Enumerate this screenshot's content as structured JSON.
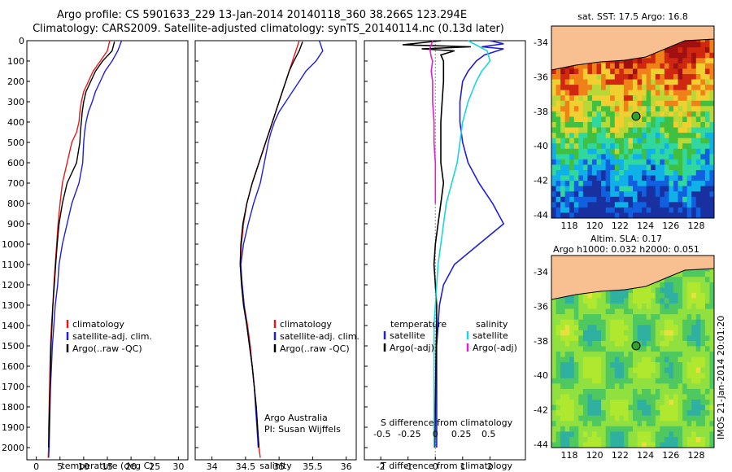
{
  "header": {
    "line1": "Argo profile: CS 5901633_229 13-Jan-2014 20140118_360 38.266S 123.294E",
    "line2": "Climatology: CARS2009. Satellite-adjusted climatology: synTS_20140114.nc (0.13d later)"
  },
  "colors": {
    "climatology": "#e41a1c",
    "satellite": "#1f1fd6",
    "argo": "#000000",
    "sat_s": "#19d6df",
    "argo_s": "#e020d0",
    "land": "#f8c090"
  },
  "chart_data": [
    {
      "type": "line",
      "name": "temperature",
      "xlabel": "temperature (deg C)",
      "ylabel": "",
      "xlim": [
        -2,
        32
      ],
      "ylim": [
        2060,
        0
      ],
      "xticks": [
        0,
        5,
        10,
        15,
        20,
        25,
        30
      ],
      "yticks": [
        0,
        100,
        200,
        300,
        400,
        500,
        600,
        700,
        800,
        900,
        1000,
        1100,
        1200,
        1300,
        1400,
        1500,
        1600,
        1700,
        1800,
        1900,
        2000
      ],
      "legend": [
        "climatology",
        "satellite-adj. clim.",
        "Argo(..raw -QC)"
      ],
      "series": [
        {
          "name": "climatology",
          "color": "#e41a1c",
          "x": [
            15.5,
            15.0,
            13.5,
            12.0,
            11.0,
            10.0,
            9.5,
            9.2,
            9.0,
            8.5,
            7.5,
            6.5,
            5.5,
            5.0,
            4.6,
            4.3,
            4.0,
            3.7,
            3.5,
            3.2,
            3.0,
            2.9,
            2.8,
            2.7,
            2.6,
            2.6,
            2.5
          ],
          "y": [
            0,
            50,
            100,
            150,
            200,
            250,
            300,
            350,
            400,
            450,
            500,
            600,
            700,
            800,
            900,
            1000,
            1100,
            1200,
            1300,
            1400,
            1500,
            1600,
            1700,
            1800,
            1900,
            2000,
            2050
          ]
        },
        {
          "name": "satellite-adj. clim.",
          "color": "#1f1fd6",
          "x": [
            18.0,
            17.2,
            16.0,
            14.5,
            13.5,
            12.5,
            11.8,
            11.0,
            10.5,
            10.2,
            10.0,
            9.8,
            9.0,
            7.5,
            6.5,
            5.5,
            4.8,
            4.5,
            4.0,
            3.7,
            3.4,
            3.2,
            3.0,
            2.9,
            2.8,
            2.7,
            2.6
          ],
          "y": [
            0,
            50,
            100,
            150,
            200,
            250,
            300,
            350,
            400,
            450,
            500,
            600,
            700,
            800,
            900,
            1000,
            1100,
            1200,
            1300,
            1400,
            1500,
            1600,
            1700,
            1800,
            1900,
            2000,
            2050
          ]
        },
        {
          "name": "Argo(..raw -QC)",
          "color": "#000000",
          "x": [
            16.5,
            16.0,
            14.0,
            12.5,
            11.5,
            10.5,
            10.0,
            9.7,
            9.5,
            9.3,
            9.2,
            8.5,
            6.5,
            5.5,
            4.8,
            4.4,
            4.1,
            3.8,
            3.5,
            3.3,
            3.1,
            3.0,
            2.9,
            2.8,
            2.7,
            2.6
          ],
          "y": [
            5,
            50,
            100,
            150,
            200,
            250,
            300,
            350,
            400,
            450,
            500,
            600,
            700,
            800,
            900,
            1000,
            1100,
            1200,
            1300,
            1400,
            1500,
            1600,
            1700,
            1800,
            1900,
            2000
          ]
        }
      ]
    },
    {
      "type": "line",
      "name": "salinity",
      "xlabel": "salinity",
      "ylabel": "",
      "xlim": [
        33.75,
        36.15
      ],
      "ylim": [
        2060,
        0
      ],
      "xticks": [
        34,
        34.5,
        35,
        35.5,
        36
      ],
      "legend": [
        "climatology",
        "satellite-adj. clim.",
        "Argo(..raw -QC)"
      ],
      "annotation": [
        "Argo Australia",
        "PI: Susan Wijffels"
      ],
      "series": [
        {
          "name": "climatology",
          "color": "#e41a1c",
          "x": [
            35.3,
            35.25,
            35.2,
            35.15,
            35.1,
            35.05,
            35.0,
            34.95,
            34.9,
            34.85,
            34.8,
            34.7,
            34.6,
            34.52,
            34.47,
            34.44,
            34.42,
            34.45,
            34.48,
            34.53,
            34.57,
            34.6,
            34.63,
            34.66,
            34.68,
            34.7,
            34.72
          ],
          "y": [
            0,
            50,
            100,
            150,
            200,
            250,
            300,
            350,
            400,
            450,
            500,
            600,
            700,
            800,
            900,
            1000,
            1100,
            1200,
            1300,
            1400,
            1500,
            1600,
            1700,
            1800,
            1900,
            2000,
            2050
          ]
        },
        {
          "name": "satellite-adj. clim.",
          "color": "#1f1fd6",
          "x": [
            35.6,
            35.65,
            35.55,
            35.4,
            35.3,
            35.2,
            35.1,
            35.0,
            34.93,
            34.88,
            34.84,
            34.78,
            34.72,
            34.62,
            34.54,
            34.47,
            34.43,
            34.45,
            34.48,
            34.52,
            34.56,
            34.6,
            34.63,
            34.65,
            34.67,
            34.69
          ],
          "y": [
            0,
            50,
            100,
            150,
            200,
            250,
            300,
            350,
            400,
            450,
            500,
            600,
            700,
            800,
            900,
            1000,
            1100,
            1200,
            1300,
            1400,
            1500,
            1600,
            1700,
            1800,
            1900,
            2000
          ]
        },
        {
          "name": "Argo(..raw -QC)",
          "color": "#000000",
          "x": [
            35.35,
            35.3,
            35.22,
            35.15,
            35.1,
            35.05,
            35.0,
            34.95,
            34.9,
            34.85,
            34.8,
            34.7,
            34.6,
            34.52,
            34.46,
            34.43,
            34.42,
            34.44,
            34.47,
            34.52,
            34.56,
            34.6,
            34.63,
            34.66,
            34.68,
            34.7
          ],
          "y": [
            5,
            50,
            100,
            150,
            200,
            250,
            300,
            350,
            400,
            450,
            500,
            600,
            700,
            800,
            900,
            1000,
            1100,
            1200,
            1300,
            1400,
            1500,
            1600,
            1700,
            1800,
            1900,
            2000
          ]
        }
      ]
    },
    {
      "type": "line",
      "name": "differences",
      "xlabel": "T difference from climatology",
      "x2label": "S difference from climatology",
      "xlim": [
        -2.6,
        3.3
      ],
      "ylim": [
        2060,
        0
      ],
      "xticks": [
        -2,
        -1,
        0,
        1,
        2
      ],
      "x2ticks": [
        "-0.5",
        "-0.25",
        "0",
        "0.25",
        "0.5"
      ],
      "legend_left": [
        "temperature",
        "satellite",
        "Argo(-adj)"
      ],
      "legend_right": [
        "salinity",
        "satellite",
        "Argo(-adj)"
      ],
      "series": [
        {
          "name": "T satellite",
          "color": "#1f1fd6",
          "x": [
            2.0,
            2.5,
            1.7,
            2.5,
            1.8,
            1.5,
            1.2,
            1.0,
            0.9,
            0.9,
            1.0,
            1.2,
            1.6,
            2.1,
            2.5,
            1.6,
            0.7,
            0.3,
            0.15,
            0.1,
            0.05,
            0.05,
            0.05,
            0.05
          ],
          "y": [
            0,
            15,
            30,
            40,
            70,
            100,
            150,
            200,
            300,
            400,
            500,
            600,
            700,
            800,
            900,
            1000,
            1100,
            1200,
            1300,
            1400,
            1500,
            1600,
            1800,
            2000
          ]
        },
        {
          "name": "T Argo(-adj)",
          "color": "#000000",
          "x": [
            0.2,
            -1.2,
            1.3,
            -0.5,
            0.7,
            0.2,
            0.3,
            0.3,
            0.25,
            0.2,
            0.2,
            0.2,
            0.3,
            0.2,
            0.1,
            0.0,
            -0.05,
            0.0,
            0.05,
            0.05,
            0.03,
            0.02,
            0.0,
            -0.02
          ],
          "y": [
            0,
            20,
            30,
            40,
            50,
            70,
            100,
            200,
            300,
            400,
            500,
            600,
            700,
            800,
            900,
            1000,
            1100,
            1200,
            1300,
            1400,
            1500,
            1600,
            1800,
            2000
          ]
        },
        {
          "name": "S satellite",
          "color": "#19d6df",
          "x": [
            1.2,
            1.9,
            2.0,
            1.7,
            1.5,
            1.2,
            1.0,
            0.9,
            0.8,
            0.6,
            0.4,
            0.3,
            0.2,
            0.1,
            0.05,
            0.0,
            -0.05,
            -0.05,
            -0.05,
            -0.05,
            -0.05,
            -0.05
          ],
          "y": [
            0,
            50,
            100,
            150,
            200,
            300,
            400,
            500,
            600,
            700,
            800,
            900,
            1000,
            1100,
            1200,
            1300,
            1400,
            1500,
            1600,
            1700,
            1800,
            2000
          ]
        },
        {
          "name": "S Argo(-adj)",
          "color": "#e020d0",
          "x": [
            -0.1,
            -0.2,
            -0.15,
            -0.1,
            -0.15,
            -0.1,
            -0.1,
            -0.05,
            -0.05,
            0.0,
            0.0,
            0.0
          ],
          "y": [
            0,
            40,
            80,
            100,
            150,
            200,
            300,
            400,
            500,
            600,
            700,
            800
          ]
        }
      ]
    }
  ],
  "maps": {
    "sst": {
      "title": "sat. SST: 17.5  Argo: 16.8",
      "yticks": [
        "-34",
        "-36",
        "-38",
        "-40",
        "-42",
        "-44"
      ],
      "xticks": [
        "118",
        "120",
        "122",
        "124",
        "126",
        "128"
      ]
    },
    "sla": {
      "title1": "Altim. SLA: 0.17",
      "title2": "Argo h1000: 0.032 h2000: 0.051",
      "yticks": [
        "-34",
        "-36",
        "-38",
        "-40",
        "-42",
        "-44"
      ],
      "xticks": [
        "118",
        "120",
        "122",
        "124",
        "126",
        "128"
      ]
    }
  },
  "credit": "IMOS 21-Jan-2014 20:01:20"
}
